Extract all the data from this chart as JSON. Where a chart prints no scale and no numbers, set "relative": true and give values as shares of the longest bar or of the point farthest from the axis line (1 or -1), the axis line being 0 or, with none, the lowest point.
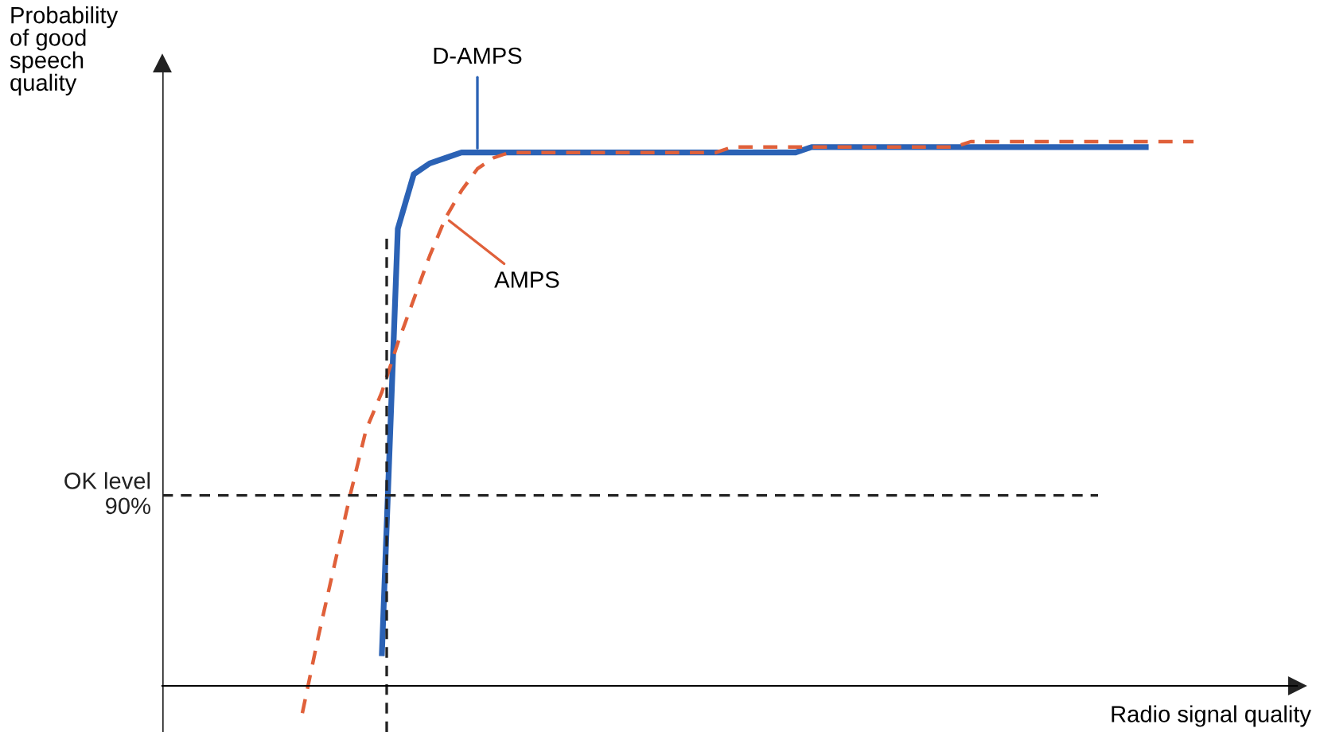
{
  "chart_data": {
    "type": "line",
    "relative": true,
    "xlabel": "Radio signal quality",
    "annotations": [
      "Probability\nof good\nspeech\nquality"
    ],
    "categories": [
      null,
      null,
      null,
      null,
      null,
      null,
      null,
      null,
      null,
      null,
      null,
      null,
      null,
      null,
      null,
      null,
      null,
      null,
      null,
      null,
      null,
      null,
      null,
      null,
      null,
      null,
      null,
      null,
      null,
      null,
      null,
      null,
      null,
      null,
      null,
      null,
      null,
      null,
      null,
      null,
      null,
      null,
      null,
      null,
      null,
      null,
      null,
      null,
      null,
      null,
      null,
      null,
      null,
      null,
      null,
      null,
      null
    ],
    "series": [
      {
        "name": "D-AMPS",
        "color": "#2b62b5",
        "line_style": "solid",
        "values": [
          null,
          null,
          null,
          null,
          null,
          0.06,
          0.84,
          0.94,
          0.96,
          0.97,
          0.98,
          0.98,
          0.98,
          0.98,
          0.98,
          0.98,
          0.98,
          0.98,
          0.98,
          0.98,
          0.98,
          0.98,
          0.98,
          0.98,
          0.98,
          0.98,
          0.98,
          0.98,
          0.98,
          0.98,
          0.98,
          0.98,
          0.99,
          0.99,
          0.99,
          0.99,
          0.99,
          0.99,
          0.99,
          0.99,
          0.99,
          0.99,
          0.99,
          0.99,
          0.99,
          0.99,
          0.99,
          0.99,
          0.99,
          0.99,
          0.99,
          0.99,
          0.99,
          0.99,
          null,
          null,
          null
        ]
      },
      {
        "name": "AMPS",
        "color": "#e0603a",
        "line_style": "dashed",
        "values": [
          -0.05,
          0.09,
          0.22,
          0.35,
          0.47,
          0.54,
          0.63,
          0.71,
          0.79,
          0.86,
          0.91,
          0.95,
          0.97,
          0.98,
          0.98,
          0.98,
          0.98,
          0.98,
          0.98,
          0.98,
          0.98,
          0.98,
          0.98,
          0.98,
          0.98,
          0.98,
          0.98,
          0.99,
          0.99,
          0.99,
          0.99,
          0.99,
          0.99,
          0.99,
          0.99,
          0.99,
          0.99,
          0.99,
          0.99,
          0.99,
          0.99,
          0.99,
          1.0,
          1.0,
          1.0,
          1.0,
          1.0,
          1.0,
          1.0,
          1.0,
          1.0,
          1.0,
          1.0,
          1.0,
          1.0,
          1.0,
          1.0
        ]
      }
    ],
    "ref_lines": [
      {
        "axis": "y",
        "value": 0.35,
        "label": "OK level\n90%",
        "color": "#222222",
        "line_style": "dashed"
      }
    ]
  }
}
